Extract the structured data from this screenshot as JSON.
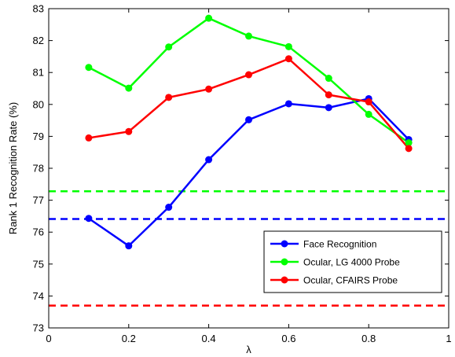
{
  "chart_data": {
    "type": "line",
    "xlabel": "λ",
    "ylabel": "Rank 1 Recognition Rate (%)",
    "xlim": [
      0,
      1
    ],
    "ylim": [
      73,
      83
    ],
    "xticks": [
      0,
      0.2,
      0.4,
      0.6,
      0.8,
      1
    ],
    "xtick_labels": [
      "0",
      "0.2",
      "0.4",
      "0.6",
      "0.8",
      "1"
    ],
    "yticks": [
      73,
      74,
      75,
      76,
      77,
      78,
      79,
      80,
      81,
      82,
      83
    ],
    "ytick_labels": [
      "73",
      "74",
      "75",
      "76",
      "77",
      "78",
      "79",
      "80",
      "81",
      "82",
      "83"
    ],
    "grid": false,
    "legend_position": "lower-right",
    "x": [
      0.1,
      0.2,
      0.3,
      0.4,
      0.5,
      0.6,
      0.7,
      0.8,
      0.9
    ],
    "series": [
      {
        "name": "Face Recognition",
        "color": "#0000ff",
        "values": [
          76.43,
          75.57,
          76.78,
          78.27,
          79.52,
          80.02,
          79.9,
          80.18,
          78.9
        ]
      },
      {
        "name": "Ocular, LG 4000 Probe",
        "color": "#00ff00",
        "values": [
          81.16,
          80.51,
          81.8,
          82.7,
          82.14,
          81.81,
          80.82,
          79.69,
          78.8
        ]
      },
      {
        "name": "Ocular, CFAIRS Probe",
        "color": "#ff0000",
        "values": [
          78.95,
          79.15,
          80.22,
          80.48,
          80.93,
          81.43,
          80.3,
          80.08,
          78.62
        ]
      }
    ],
    "baselines": [
      {
        "color": "#00ff00",
        "value": 77.28
      },
      {
        "color": "#0000ff",
        "value": 76.41
      },
      {
        "color": "#ff0000",
        "value": 73.7
      }
    ]
  }
}
